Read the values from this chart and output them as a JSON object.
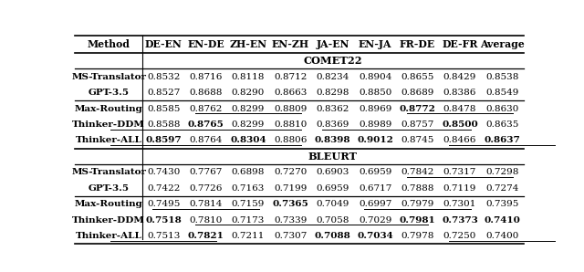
{
  "columns": [
    "Method",
    "DE-EN",
    "EN-DE",
    "ZH-EN",
    "EN-ZH",
    "JA-EN",
    "EN-JA",
    "FR-DE",
    "DE-FR",
    "Average"
  ],
  "sections": [
    {
      "header": "COMET22",
      "groups": [
        {
          "rows": [
            {
              "method": "MS-Translator",
              "values": [
                "0.8532",
                "0.8716",
                "0.8118",
                "0.8712",
                "0.8234",
                "0.8904",
                "0.8655",
                "0.8429",
                "0.8538"
              ],
              "bold": [],
              "underline": []
            },
            {
              "method": "GPT-3.5",
              "values": [
                "0.8527",
                "0.8688",
                "0.8290",
                "0.8663",
                "0.8298",
                "0.8850",
                "0.8689",
                "0.8386",
                "0.8549"
              ],
              "bold": [],
              "underline": []
            }
          ]
        },
        {
          "rows": [
            {
              "method": "Max-Routing",
              "values": [
                "0.8585",
                "0.8762",
                "0.8299",
                "0.8809",
                "0.8362",
                "0.8969",
                "0.8772",
                "0.8478",
                "0.8630"
              ],
              "bold": [
                6
              ],
              "underline": [
                2,
                7
              ]
            },
            {
              "method": "Thinker-DDM",
              "values": [
                "0.8588",
                "0.8765",
                "0.8299",
                "0.8810",
                "0.8369",
                "0.8989",
                "0.8757",
                "0.8500",
                "0.8635"
              ],
              "bold": [
                1,
                7
              ],
              "underline": [
                0,
                2,
                5,
                6
              ]
            },
            {
              "method": "Thinker-ALL",
              "values": [
                "0.8597",
                "0.8764",
                "0.8304",
                "0.8806",
                "0.8398",
                "0.9012",
                "0.8745",
                "0.8466",
                "0.8637"
              ],
              "bold": [
                0,
                2,
                4,
                5,
                8
              ],
              "underline": [
                0,
                1,
                2,
                8
              ]
            }
          ]
        }
      ]
    },
    {
      "header": "BLEURT",
      "groups": [
        {
          "rows": [
            {
              "method": "MS-Translator",
              "values": [
                "0.7430",
                "0.7767",
                "0.6898",
                "0.7270",
                "0.6903",
                "0.6959",
                "0.7842",
                "0.7317",
                "0.7298"
              ],
              "bold": [],
              "underline": [
                7
              ]
            },
            {
              "method": "GPT-3.5",
              "values": [
                "0.7422",
                "0.7726",
                "0.7163",
                "0.7199",
                "0.6959",
                "0.6717",
                "0.7888",
                "0.7119",
                "0.7274"
              ],
              "bold": [],
              "underline": []
            }
          ]
        },
        {
          "rows": [
            {
              "method": "Max-Routing",
              "values": [
                "0.7495",
                "0.7814",
                "0.7159",
                "0.7365",
                "0.7049",
                "0.6997",
                "0.7979",
                "0.7301",
                "0.7395"
              ],
              "bold": [
                3
              ],
              "underline": [
                1,
                6
              ]
            },
            {
              "method": "Thinker-DDM",
              "values": [
                "0.7518",
                "0.7810",
                "0.7173",
                "0.7339",
                "0.7058",
                "0.7029",
                "0.7981",
                "0.7373",
                "0.7410"
              ],
              "bold": [
                0,
                6,
                7,
                8
              ],
              "underline": [
                2,
                3,
                4,
                5
              ]
            },
            {
              "method": "Thinker-ALL",
              "values": [
                "0.7513",
                "0.7821",
                "0.7211",
                "0.7307",
                "0.7088",
                "0.7034",
                "0.7978",
                "0.7250",
                "0.7400"
              ],
              "bold": [
                1,
                4,
                5
              ],
              "underline": [
                0,
                8
              ]
            }
          ]
        }
      ]
    }
  ],
  "figsize": [
    6.4,
    2.98
  ],
  "dpi": 100,
  "font_size": 7.5,
  "bold_font_size": 7.5,
  "header_font_size": 7.8,
  "section_font_size": 8.2
}
